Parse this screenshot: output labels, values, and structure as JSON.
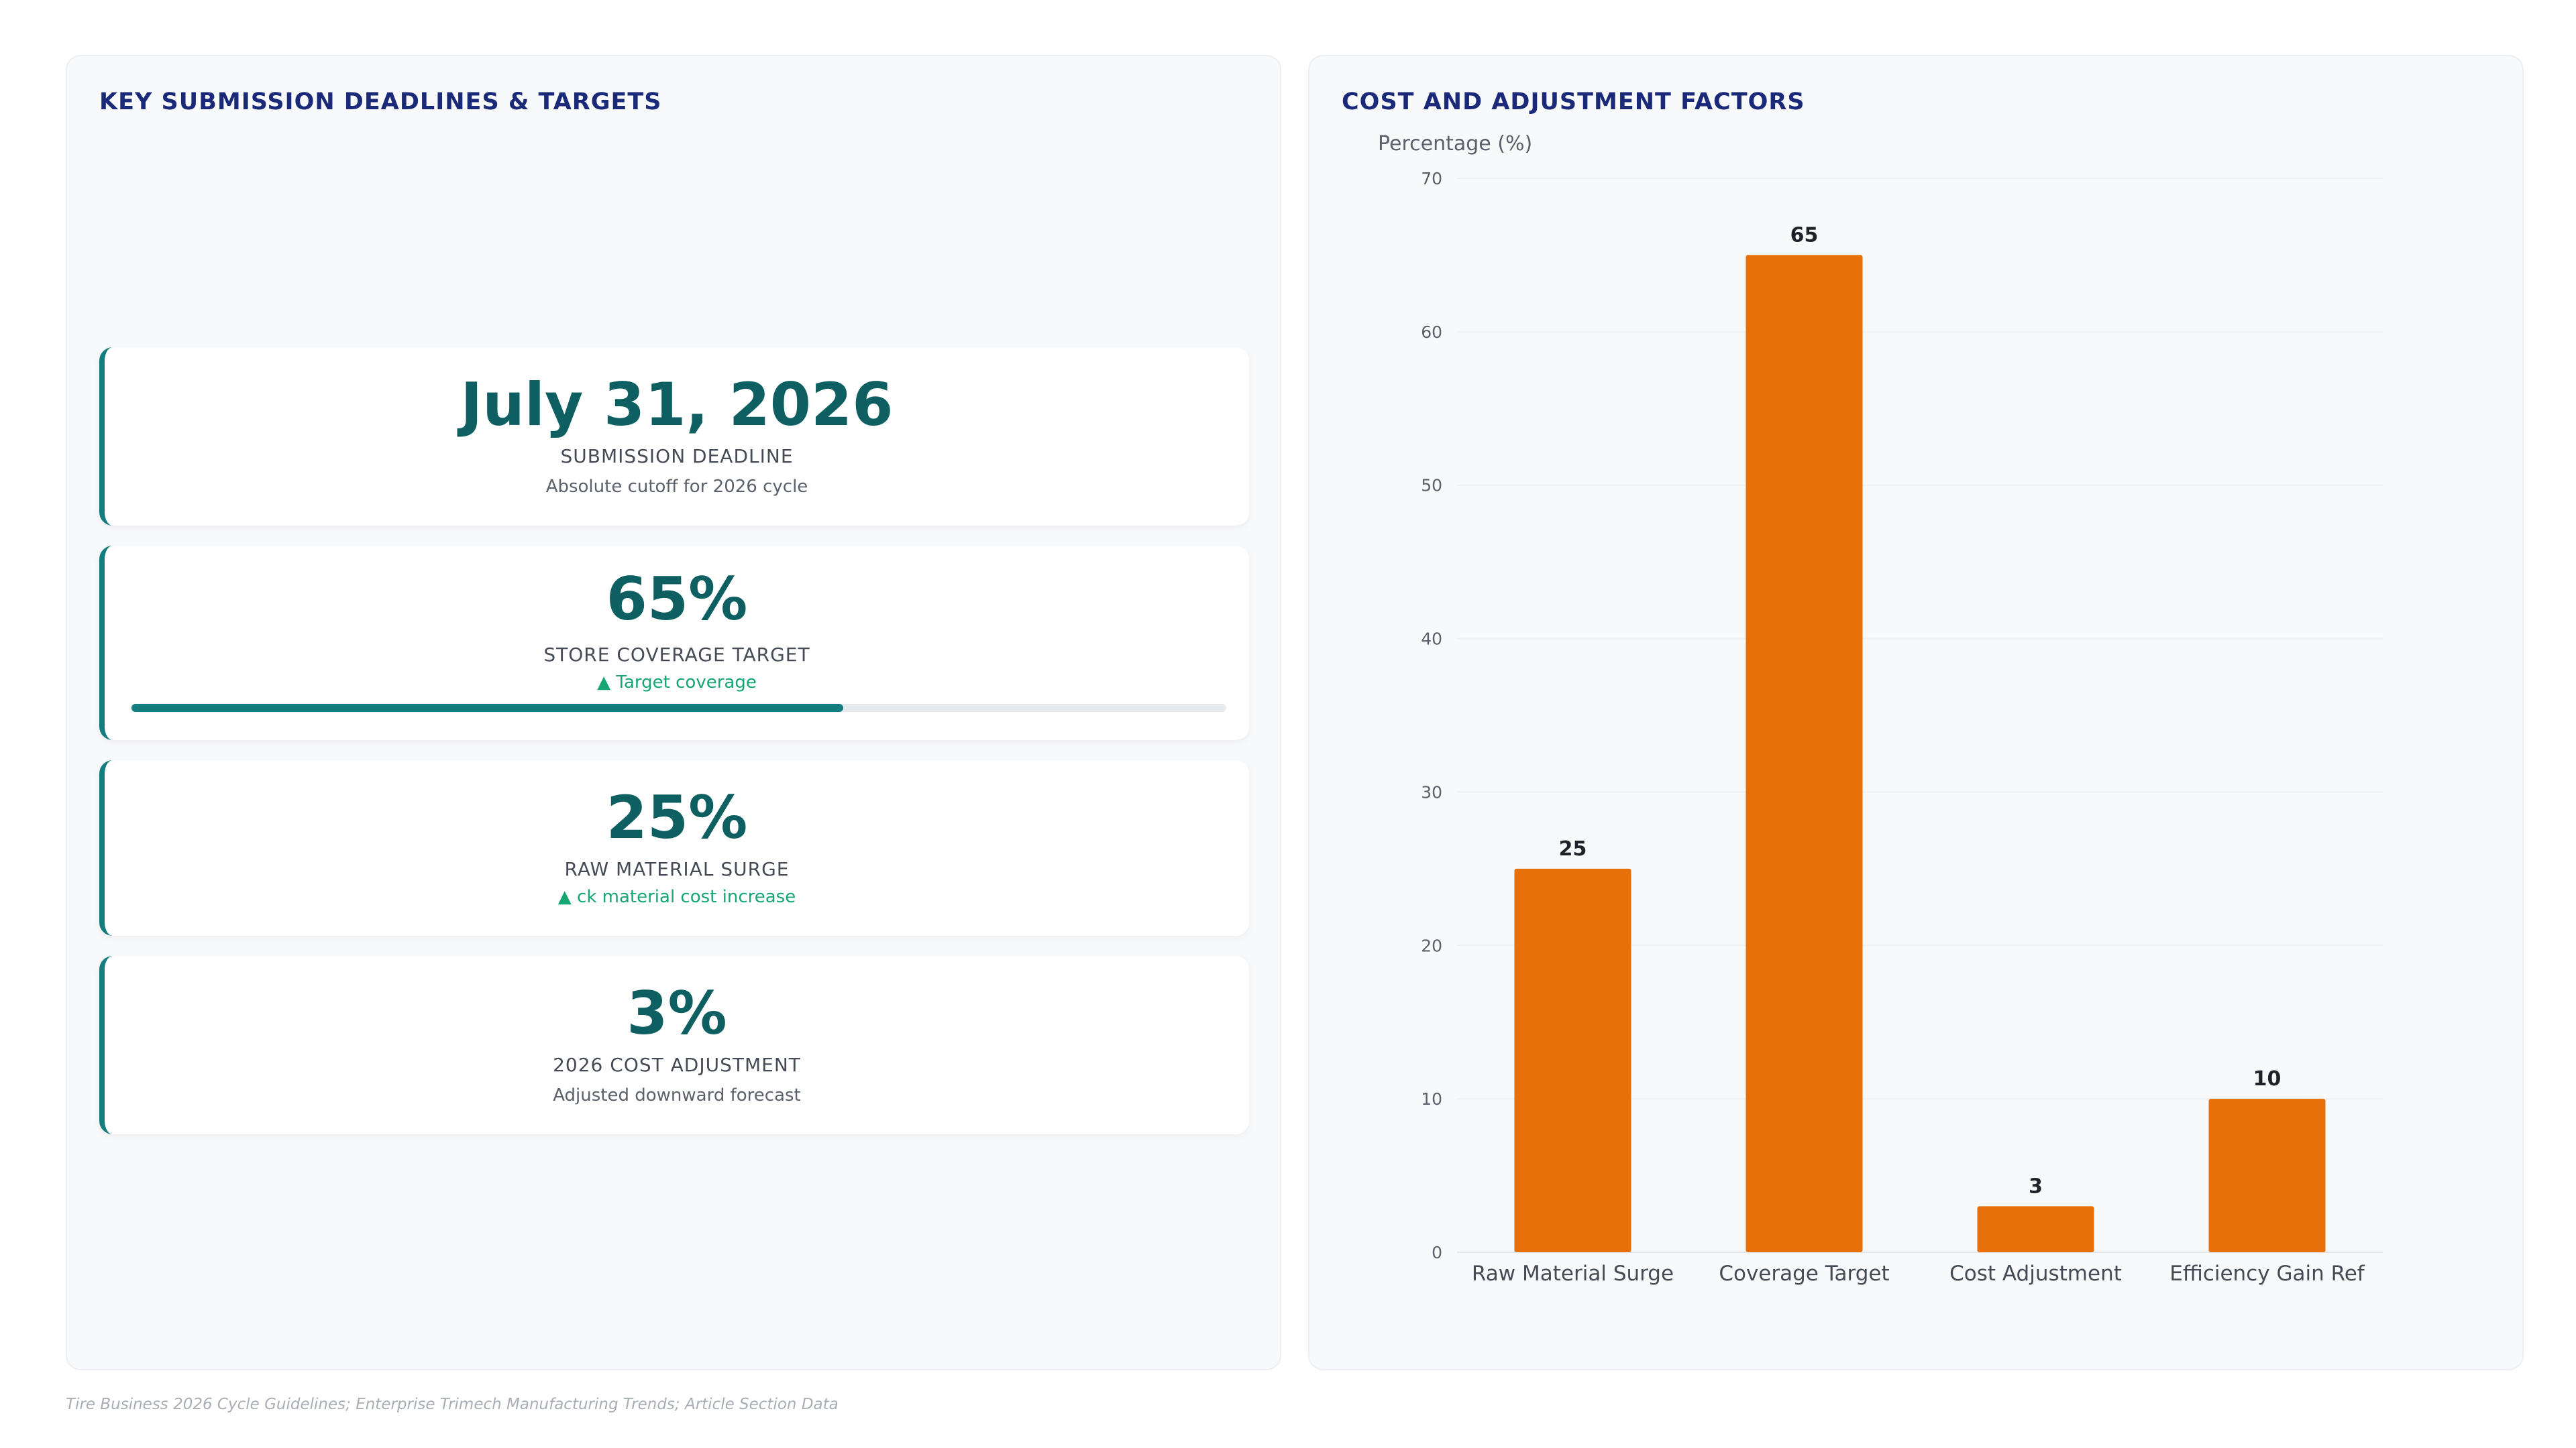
{
  "left_panel": {
    "title": "KEY SUBMISSION DEADLINES & TARGETS",
    "kpis": [
      {
        "value": "July 31, 2026",
        "label": "SUBMISSION DEADLINE",
        "sub": "Absolute cutoff for 2026 cycle"
      },
      {
        "value": "65%",
        "label": "STORE COVERAGE TARGET",
        "sub": "▲ Target coverage",
        "progress": 0.65
      },
      {
        "value": "25%",
        "label": "RAW MATERIAL SURGE",
        "sub": "▲ ck material cost increase"
      },
      {
        "value": "3%",
        "label": "2026 COST ADJUSTMENT",
        "sub": "Adjusted downward forecast"
      }
    ]
  },
  "right_panel": {
    "title": "COST AND ADJUSTMENT FACTORS"
  },
  "chart_data": {
    "type": "bar",
    "title": "COST AND ADJUSTMENT FACTORS",
    "ylabel": "Percentage (%)",
    "xlabel": "",
    "categories": [
      "Raw Material Surge",
      "Coverage Target",
      "Cost Adjustment",
      "Efficiency Gain Ref"
    ],
    "values": [
      25,
      65,
      3,
      10
    ],
    "ylim": [
      0,
      70
    ],
    "yticks": [
      0,
      10,
      20,
      30,
      40,
      50,
      60,
      70
    ],
    "grid": true,
    "legend": "none",
    "data_labels": true
  },
  "colors": {
    "bar": "#e8700a",
    "accent": "#137d7f",
    "title": "#1b2a78",
    "trend": "#15a672"
  },
  "footer": "Tire Business 2026 Cycle Guidelines; Enterprise Trimech Manufacturing Trends; Article Section Data"
}
